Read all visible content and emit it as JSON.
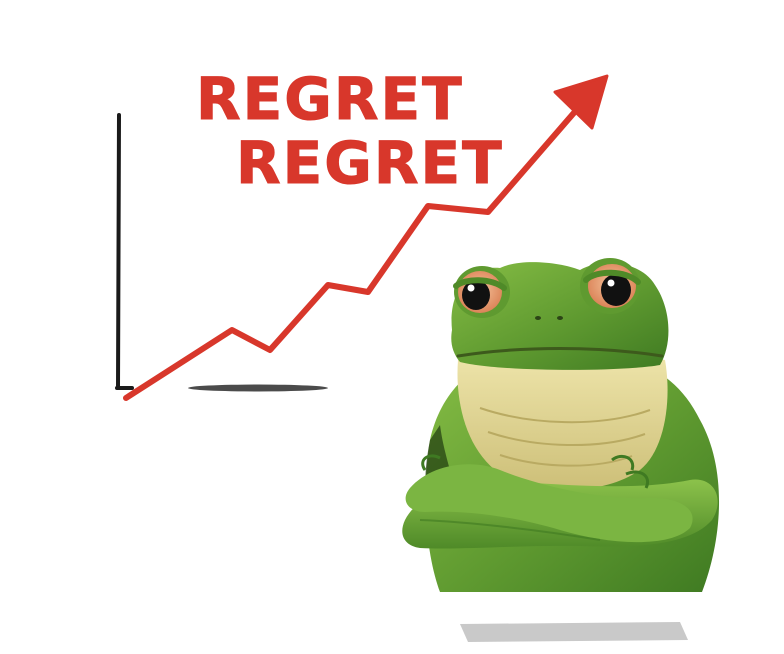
{
  "caption": {
    "line1": "REGRET",
    "line2": "REGRET"
  },
  "colors": {
    "arrow": "#d8372b",
    "axis": "#1a1a1a",
    "frog_green": "#6aa63a",
    "frog_belly": "#e6dc9a",
    "eye": "#e8a070"
  },
  "icons": {
    "chart": "trend-arrow-icon",
    "character": "frog-icon"
  }
}
